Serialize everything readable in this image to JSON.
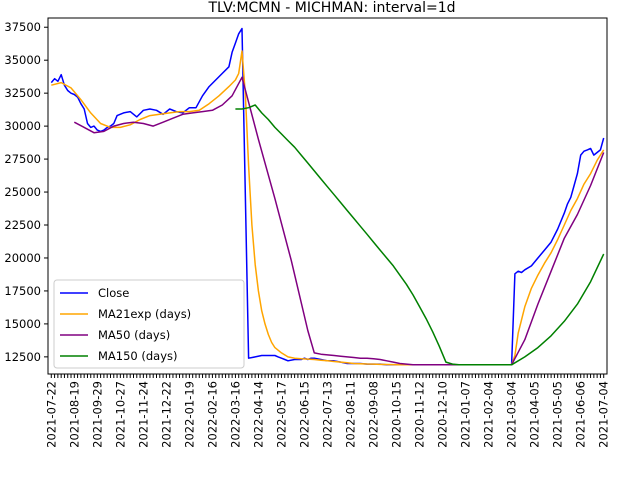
{
  "chart_data": {
    "type": "line",
    "title": "TLV:MCMN - MICHMAN: interval=1d",
    "xlabel": "",
    "ylabel": "",
    "yticks": [
      {
        "value": 12500,
        "label": "12500"
      },
      {
        "value": 15000,
        "label": "15000"
      },
      {
        "value": 17500,
        "label": "17500"
      },
      {
        "value": 20000,
        "label": "20000"
      },
      {
        "value": 22500,
        "label": "22500"
      },
      {
        "value": 25000,
        "label": "25000"
      },
      {
        "value": 27500,
        "label": "27500"
      },
      {
        "value": 30000,
        "label": "30000"
      },
      {
        "value": 32500,
        "label": "32500"
      },
      {
        "value": 35000,
        "label": "35000"
      },
      {
        "value": 37500,
        "label": "37500"
      }
    ],
    "ylim": [
      11200,
      38200
    ],
    "xlim": [
      -1,
      169
    ],
    "xtick_labels": [
      "2021-07-22",
      "2021-08-19",
      "2021-09-29",
      "2021-10-27",
      "2021-11-24",
      "2021-12-22",
      "2022-01-19",
      "2022-02-16",
      "2022-03-16",
      "2022-04-14",
      "2022-05-17",
      "2022-06-15",
      "2022-07-13",
      "2022-08-11",
      "2022-09-08",
      "2020-10-15",
      "2020-11-12",
      "2020-12-10",
      "2021-01-07",
      "2021-02-04",
      "2021-03-04",
      "2021-04-05",
      "2021-05-05",
      "2021-06-06",
      "2021-07-04"
    ],
    "grid": false,
    "legend": {
      "position": "lower-left"
    },
    "series": [
      {
        "name": "Close",
        "color": "#0000ff",
        "x": [
          0,
          1,
          2,
          3,
          4,
          5,
          6,
          7,
          8,
          9,
          10,
          11,
          12,
          13,
          14,
          15,
          16,
          17,
          18,
          19,
          20,
          22,
          24,
          26,
          28,
          30,
          32,
          34,
          36,
          38,
          40,
          42,
          44,
          46,
          48,
          50,
          52,
          54,
          55,
          56,
          57,
          58,
          60,
          62,
          64,
          66,
          68,
          69,
          70,
          71,
          72,
          74,
          76,
          77,
          78,
          79,
          80,
          82,
          84,
          86,
          88,
          90,
          92,
          94,
          96,
          98,
          100,
          102,
          104,
          106,
          108,
          110,
          112,
          114,
          116,
          118,
          120,
          122,
          124,
          126,
          128,
          130,
          132,
          134,
          136,
          138,
          140,
          141,
          142,
          143,
          144,
          146,
          148,
          150,
          152,
          154,
          156,
          157,
          158,
          159,
          160,
          161,
          162,
          163,
          164,
          165,
          166,
          167,
          168
        ],
        "values": [
          33300,
          33600,
          33400,
          33900,
          33100,
          32700,
          32500,
          32400,
          32200,
          31700,
          31300,
          30200,
          29900,
          30000,
          29700,
          29600,
          29700,
          29900,
          30000,
          30200,
          30800,
          31000,
          31100,
          30700,
          31200,
          31300,
          31200,
          30900,
          31300,
          31100,
          31000,
          31400,
          31400,
          32300,
          33000,
          33500,
          34000,
          34500,
          35600,
          36300,
          37000,
          37400,
          12400,
          12500,
          12600,
          12600,
          12600,
          12500,
          12400,
          12300,
          12200,
          12300,
          12300,
          12400,
          12300,
          12400,
          12400,
          12300,
          12200,
          12200,
          12100,
          12000,
          12000,
          12000,
          11950,
          11950,
          11950,
          11900,
          11900,
          11900,
          11900,
          11900,
          11900,
          11900,
          11900,
          11900,
          11900,
          11900,
          11900,
          11900,
          11900,
          11900,
          11900,
          11900,
          11900,
          11900,
          11900,
          18800,
          19000,
          18900,
          19100,
          19400,
          20000,
          20600,
          21200,
          22200,
          23400,
          24100,
          24600,
          25500,
          26400,
          27800,
          28100,
          28200,
          28300,
          27800,
          28000,
          28200,
          29100
        ]
      },
      {
        "name": "MA21exp (days)",
        "color": "#ffa500",
        "x": [
          0,
          3,
          6,
          9,
          12,
          15,
          18,
          21,
          24,
          27,
          30,
          33,
          36,
          39,
          42,
          45,
          48,
          51,
          54,
          56,
          57,
          58,
          59,
          60,
          61,
          62,
          63,
          64,
          65,
          66,
          67,
          68,
          70,
          72,
          74,
          76,
          78,
          80,
          82,
          84,
          86,
          88,
          90,
          92,
          94,
          96,
          98,
          100,
          102,
          104,
          106,
          108,
          110,
          112,
          114,
          116,
          118,
          120,
          122,
          124,
          126,
          128,
          130,
          132,
          134,
          136,
          138,
          140,
          141,
          142,
          144,
          146,
          148,
          150,
          152,
          154,
          156,
          158,
          160,
          162,
          164,
          166,
          168
        ],
        "values": [
          33100,
          33300,
          32900,
          32000,
          31000,
          30200,
          29900,
          29900,
          30100,
          30500,
          30800,
          30900,
          31000,
          31100,
          31100,
          31200,
          31700,
          32300,
          33000,
          33500,
          34000,
          35700,
          32500,
          27000,
          22500,
          19500,
          17500,
          16000,
          15000,
          14200,
          13600,
          13200,
          12800,
          12500,
          12400,
          12350,
          12330,
          12300,
          12250,
          12200,
          12150,
          12100,
          12050,
          12000,
          11980,
          11960,
          11950,
          11930,
          11920,
          11910,
          11900,
          11900,
          11900,
          11900,
          11900,
          11900,
          11900,
          11900,
          11900,
          11900,
          11900,
          11900,
          11900,
          11900,
          11900,
          11900,
          11900,
          11900,
          12600,
          14300,
          16300,
          17700,
          18700,
          19600,
          20400,
          21400,
          22500,
          23600,
          24500,
          25600,
          26400,
          27400,
          28200
        ]
      },
      {
        "name": "MA50 (days)",
        "color": "#800080",
        "x": [
          7,
          10,
          13,
          16,
          19,
          22,
          25,
          28,
          31,
          34,
          37,
          40,
          43,
          46,
          49,
          52,
          55,
          58,
          63,
          68,
          73,
          78,
          80,
          82,
          84,
          86,
          88,
          90,
          92,
          94,
          96,
          98,
          100,
          102,
          104,
          106,
          108,
          110,
          112,
          114,
          116,
          118,
          120,
          122,
          124,
          126,
          128,
          130,
          132,
          134,
          136,
          138,
          140,
          144,
          148,
          152,
          156,
          160,
          164,
          168
        ],
        "values": [
          30300,
          29900,
          29500,
          29600,
          30000,
          30200,
          30300,
          30200,
          30000,
          30300,
          30600,
          30900,
          31000,
          31100,
          31200,
          31600,
          32300,
          33700,
          29000,
          24500,
          19800,
          14500,
          12800,
          12700,
          12650,
          12600,
          12550,
          12500,
          12450,
          12400,
          12400,
          12350,
          12300,
          12200,
          12100,
          12000,
          11950,
          11900,
          11900,
          11900,
          11900,
          11900,
          11900,
          11900,
          11900,
          11900,
          11900,
          11900,
          11900,
          11900,
          11900,
          11900,
          11900,
          13800,
          16500,
          19000,
          21500,
          23300,
          25500,
          28000
        ]
      },
      {
        "name": "MA150 (days)",
        "color": "#008000",
        "x": [
          56,
          58,
          60,
          62,
          64,
          66,
          68,
          70,
          72,
          74,
          76,
          78,
          80,
          82,
          84,
          86,
          88,
          90,
          92,
          94,
          96,
          98,
          100,
          102,
          104,
          106,
          108,
          110,
          112,
          114,
          116,
          118,
          120,
          122,
          124,
          126,
          128,
          130,
          132,
          134,
          136,
          138,
          140,
          144,
          148,
          152,
          156,
          160,
          164,
          168
        ],
        "values": [
          31300,
          31300,
          31400,
          31600,
          31000,
          30500,
          29900,
          29400,
          28900,
          28400,
          27800,
          27200,
          26600,
          26000,
          25400,
          24800,
          24200,
          23600,
          23000,
          22400,
          21800,
          21200,
          20600,
          20000,
          19400,
          18700,
          18000,
          17200,
          16300,
          15400,
          14400,
          13300,
          12100,
          11950,
          11900,
          11900,
          11900,
          11900,
          11900,
          11900,
          11900,
          11900,
          11900,
          12500,
          13200,
          14100,
          15200,
          16500,
          18200,
          20300
        ]
      }
    ]
  }
}
